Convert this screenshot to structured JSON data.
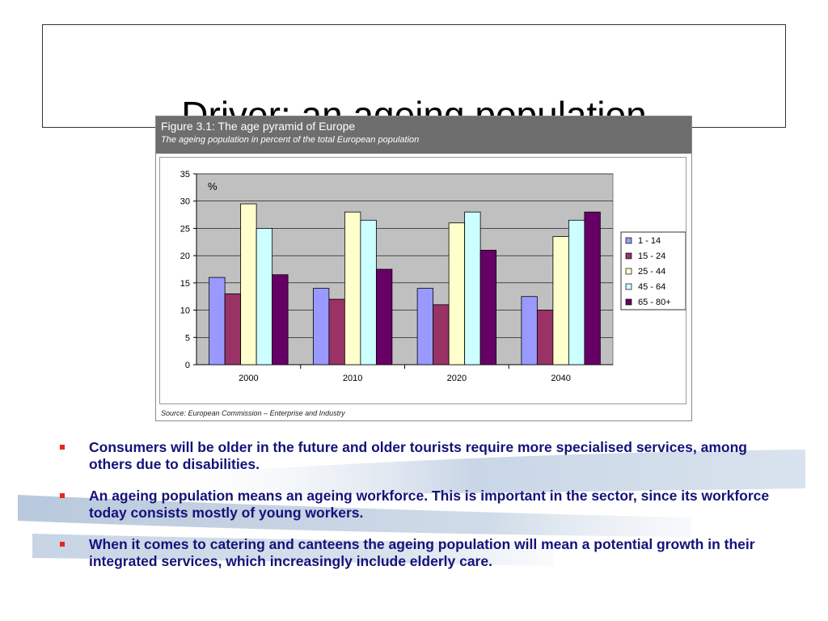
{
  "slide": {
    "title": "Driver: an ageing population"
  },
  "figure": {
    "title": "Figure 3.1: The age pyramid of Europe",
    "subtitle": "The ageing population in percent of the total European population",
    "source": "Source: European Commission – Enterprise and Industry"
  },
  "chart_data": {
    "type": "bar",
    "categories": [
      "2000",
      "2010",
      "2020",
      "2040"
    ],
    "series": [
      {
        "name": "1 - 14",
        "color": "#9999ff",
        "values": [
          16,
          14,
          14,
          12.5
        ]
      },
      {
        "name": "15 - 24",
        "color": "#993366",
        "values": [
          13,
          12,
          11,
          10
        ]
      },
      {
        "name": "25 - 44",
        "color": "#ffffcc",
        "values": [
          29.5,
          28,
          26,
          23.5
        ]
      },
      {
        "name": "45 - 64",
        "color": "#ccffff",
        "values": [
          25,
          26.5,
          28,
          26.5
        ]
      },
      {
        "name": "65 - 80+",
        "color": "#660066",
        "values": [
          16.5,
          17.5,
          21,
          28
        ]
      }
    ],
    "ylim": [
      0,
      35
    ],
    "yticks": [
      0,
      5,
      10,
      15,
      20,
      25,
      30,
      35
    ],
    "ylabel": "%",
    "xlabel": "",
    "grid": true,
    "legend": "right",
    "plot_background": "#c0c0c0"
  },
  "bullets": [
    "Consumers will be older in the future and older tourists require more specialised services, among others due to disabilities.",
    "An ageing population means an ageing workforce. This is important in the sector, since its workforce today consists mostly of young workers.",
    "When it comes to catering and canteens the ageing population will mean a potential growth in their integrated services, which increasingly include elderly care."
  ]
}
